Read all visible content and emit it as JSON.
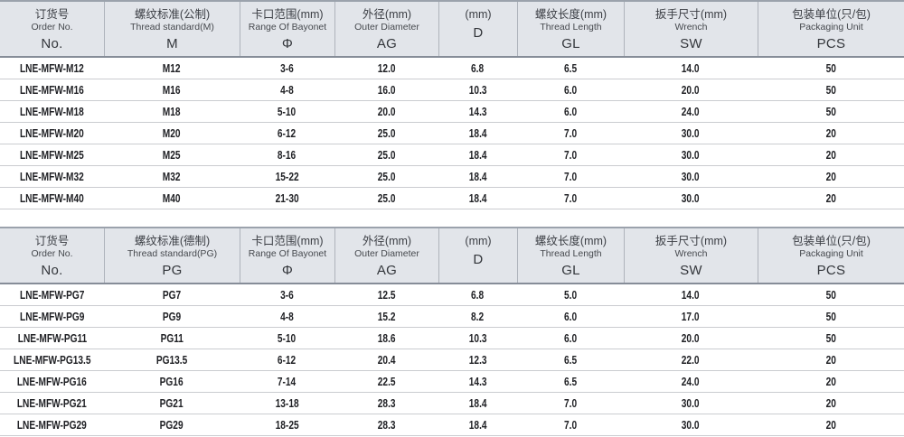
{
  "tables": [
    {
      "title": "metric-thread-glands",
      "columns": [
        {
          "zh": "订货号",
          "en": "Order No.",
          "symbol": "No."
        },
        {
          "zh": "螺纹标准(公制)",
          "en": "Thread standard(M)",
          "symbol": "M"
        },
        {
          "zh": "卡口范围(mm)",
          "en": "Range Of Bayonet",
          "symbol": "Φ"
        },
        {
          "zh": "外径(mm)",
          "en": "Outer Diameter",
          "symbol": "AG"
        },
        {
          "zh": "(mm)",
          "en": "",
          "symbol": "D"
        },
        {
          "zh": "螺纹长度(mm)",
          "en": "Thread Length",
          "symbol": "GL"
        },
        {
          "zh": "扳手尺寸(mm)",
          "en": "Wrench",
          "symbol": "SW"
        },
        {
          "zh": "包装单位(只/包)",
          "en": "Packaging Unit",
          "symbol": "PCS"
        }
      ],
      "rows": [
        [
          "LNE-MFW-M12",
          "M12",
          "3-6",
          "12.0",
          "6.8",
          "6.5",
          "14.0",
          "50"
        ],
        [
          "LNE-MFW-M16",
          "M16",
          "4-8",
          "16.0",
          "10.3",
          "6.0",
          "20.0",
          "50"
        ],
        [
          "LNE-MFW-M18",
          "M18",
          "5-10",
          "20.0",
          "14.3",
          "6.0",
          "24.0",
          "50"
        ],
        [
          "LNE-MFW-M20",
          "M20",
          "6-12",
          "25.0",
          "18.4",
          "7.0",
          "30.0",
          "20"
        ],
        [
          "LNE-MFW-M25",
          "M25",
          "8-16",
          "25.0",
          "18.4",
          "7.0",
          "30.0",
          "20"
        ],
        [
          "LNE-MFW-M32",
          "M32",
          "15-22",
          "25.0",
          "18.4",
          "7.0",
          "30.0",
          "20"
        ],
        [
          "LNE-MFW-M40",
          "M40",
          "21-30",
          "25.0",
          "18.4",
          "7.0",
          "30.0",
          "20"
        ]
      ]
    },
    {
      "title": "pg-thread-glands",
      "columns": [
        {
          "zh": "订货号",
          "en": "Order No.",
          "symbol": "No."
        },
        {
          "zh": "螺纹标准(德制)",
          "en": "Thread standard(PG)",
          "symbol": "PG"
        },
        {
          "zh": "卡口范围(mm)",
          "en": "Range Of Bayonet",
          "symbol": "Φ"
        },
        {
          "zh": "外径(mm)",
          "en": "Outer Diameter",
          "symbol": "AG"
        },
        {
          "zh": "(mm)",
          "en": "",
          "symbol": "D"
        },
        {
          "zh": "螺纹长度(mm)",
          "en": "Thread Length",
          "symbol": "GL"
        },
        {
          "zh": "扳手尺寸(mm)",
          "en": "Wrench",
          "symbol": "SW"
        },
        {
          "zh": "包装单位(只/包)",
          "en": "Packaging Unit",
          "symbol": "PCS"
        }
      ],
      "rows": [
        [
          "LNE-MFW-PG7",
          "PG7",
          "3-6",
          "12.5",
          "6.8",
          "5.0",
          "14.0",
          "50"
        ],
        [
          "LNE-MFW-PG9",
          "PG9",
          "4-8",
          "15.2",
          "8.2",
          "6.0",
          "17.0",
          "50"
        ],
        [
          "LNE-MFW-PG11",
          "PG11",
          "5-10",
          "18.6",
          "10.3",
          "6.0",
          "20.0",
          "50"
        ],
        [
          "LNE-MFW-PG13.5",
          "PG13.5",
          "6-12",
          "20.4",
          "12.3",
          "6.5",
          "22.0",
          "20"
        ],
        [
          "LNE-MFW-PG16",
          "PG16",
          "7-14",
          "22.5",
          "14.3",
          "6.5",
          "24.0",
          "20"
        ],
        [
          "LNE-MFW-PG21",
          "PG21",
          "13-18",
          "28.3",
          "18.4",
          "7.0",
          "30.0",
          "20"
        ],
        [
          "LNE-MFW-PG29",
          "PG29",
          "18-25",
          "28.3",
          "18.4",
          "7.0",
          "30.0",
          "20"
        ]
      ]
    }
  ],
  "colors": {
    "header_bg": "#e2e5ea",
    "table_top_border": "#9ba2ac",
    "header_bottom_border": "#868d98",
    "row_divider": "#caccd0",
    "header_column_divider": "#aeb3bb",
    "data_text": "#202125"
  }
}
